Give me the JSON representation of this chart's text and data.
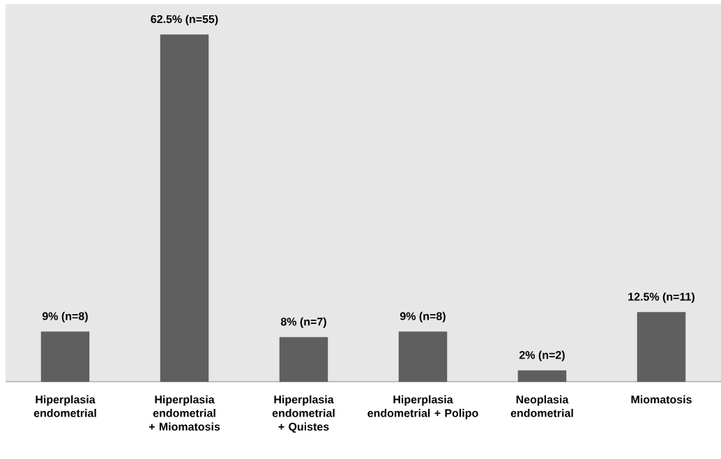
{
  "chart_data": {
    "type": "bar",
    "categories": [
      "Hiperplasia endometrial",
      "Hiperplasia endometrial + Miomatosis",
      "Hiperplasia endometrial + Quistes",
      "Hiperplasia endometrial + Polipo",
      "Neoplasia endometrial",
      "Miomatosis"
    ],
    "values": [
      9,
      62.5,
      8,
      9,
      2,
      12.5
    ],
    "value_labels": [
      "9% (n=8)",
      "62.5% (n=55)",
      "8% (n=7)",
      "9% (n=8)",
      "2% (n=2)",
      "12.5% (n=11)"
    ],
    "color": "#5f5f5f"
  }
}
